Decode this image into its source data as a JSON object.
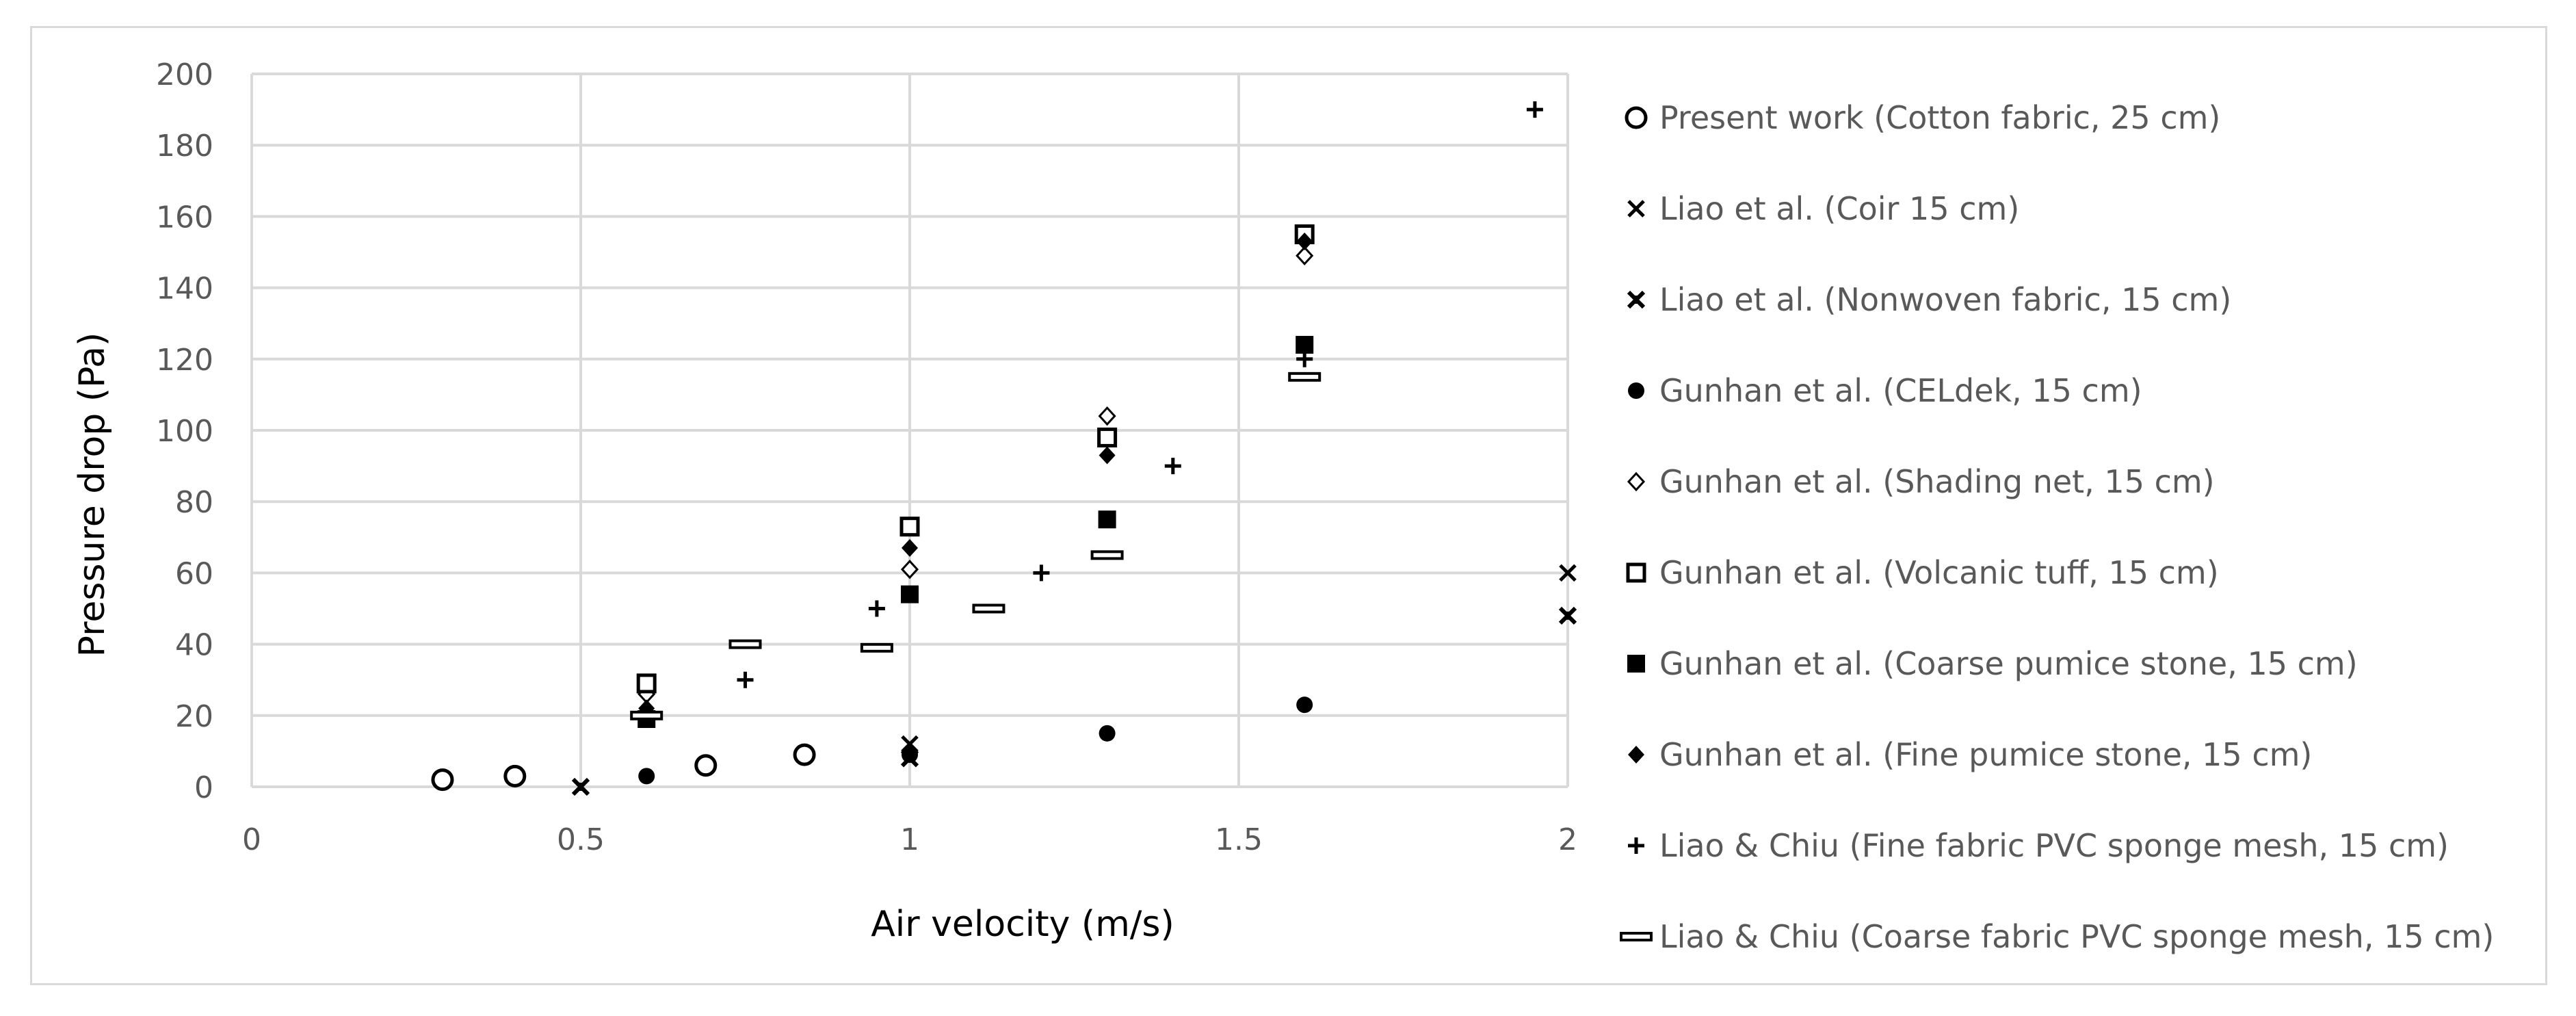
{
  "chart_data": {
    "type": "scatter",
    "title": "",
    "xlabel": "Air velocity (m/s)",
    "ylabel": "Pressure drop (Pa)",
    "xlim": [
      0,
      2
    ],
    "ylim": [
      0,
      200
    ],
    "xticks": [
      "0",
      "0.5",
      "1",
      "1.5",
      "2"
    ],
    "xtick_values": [
      0,
      0.5,
      1,
      1.5,
      2
    ],
    "yticks": [
      "0",
      "20",
      "40",
      "60",
      "80",
      "100",
      "120",
      "140",
      "160",
      "180",
      "200"
    ],
    "ytick_values": [
      0,
      20,
      40,
      60,
      80,
      100,
      120,
      140,
      160,
      180,
      200
    ],
    "grid": true,
    "legend_position": "right",
    "series": [
      {
        "name": "Present work (Cotton fabric, 25 cm)",
        "marker": "circle-open",
        "x": [
          0.29,
          0.4,
          0.69,
          0.84
        ],
        "y": [
          2,
          3,
          6,
          9
        ]
      },
      {
        "name": "Liao et al. (Coir 15 cm)",
        "marker": "x",
        "x": [
          0.5,
          1.0,
          2.0
        ],
        "y": [
          0,
          12,
          60
        ]
      },
      {
        "name": "Liao et al. (Nonwoven fabric, 15 cm)",
        "marker": "x-bold",
        "x": [
          0.5,
          1.0,
          2.0
        ],
        "y": [
          0,
          8,
          48
        ]
      },
      {
        "name": "Gunhan et al. (CELdek, 15 cm)",
        "marker": "circle-filled",
        "x": [
          0.6,
          1.0,
          1.3,
          1.6
        ],
        "y": [
          3,
          9,
          15,
          23
        ]
      },
      {
        "name": "Gunhan et al. (Shading net, 15 cm)",
        "marker": "diamond-open",
        "x": [
          0.6,
          1.0,
          1.3,
          1.6
        ],
        "y": [
          26,
          61,
          104,
          149
        ]
      },
      {
        "name": "Gunhan et al. (Volcanic tuff, 15 cm)",
        "marker": "square-open",
        "x": [
          0.6,
          1.0,
          1.3,
          1.6
        ],
        "y": [
          29,
          73,
          98,
          155
        ]
      },
      {
        "name": "Gunhan et al. (Coarse pumice stone, 15 cm)",
        "marker": "square-filled",
        "x": [
          0.6,
          1.0,
          1.3,
          1.6
        ],
        "y": [
          19,
          54,
          75,
          124
        ]
      },
      {
        "name": "Gunhan et al. (Fine pumice stone, 15 cm)",
        "marker": "diamond-filled",
        "x": [
          0.6,
          1.0,
          1.3,
          1.6
        ],
        "y": [
          22,
          67,
          93,
          153
        ]
      },
      {
        "name": "Liao & Chiu (Fine fabric PVC sponge mesh, 15 cm)",
        "marker": "plus",
        "x": [
          0.75,
          0.95,
          1.2,
          1.4,
          1.6,
          1.95
        ],
        "y": [
          30,
          50,
          60,
          90,
          120,
          190
        ]
      },
      {
        "name": "Liao & Chiu (Coarse fabric PVC sponge mesh, 15 cm)",
        "marker": "dash-rect",
        "x": [
          0.6,
          0.75,
          0.95,
          1.12,
          1.3,
          1.6
        ],
        "y": [
          20,
          40,
          39,
          50,
          65,
          115
        ]
      }
    ]
  },
  "colors": {
    "grid": "#d9d9d9",
    "marker": "#000000",
    "text": "#595959",
    "border": "#d9d9d9"
  }
}
